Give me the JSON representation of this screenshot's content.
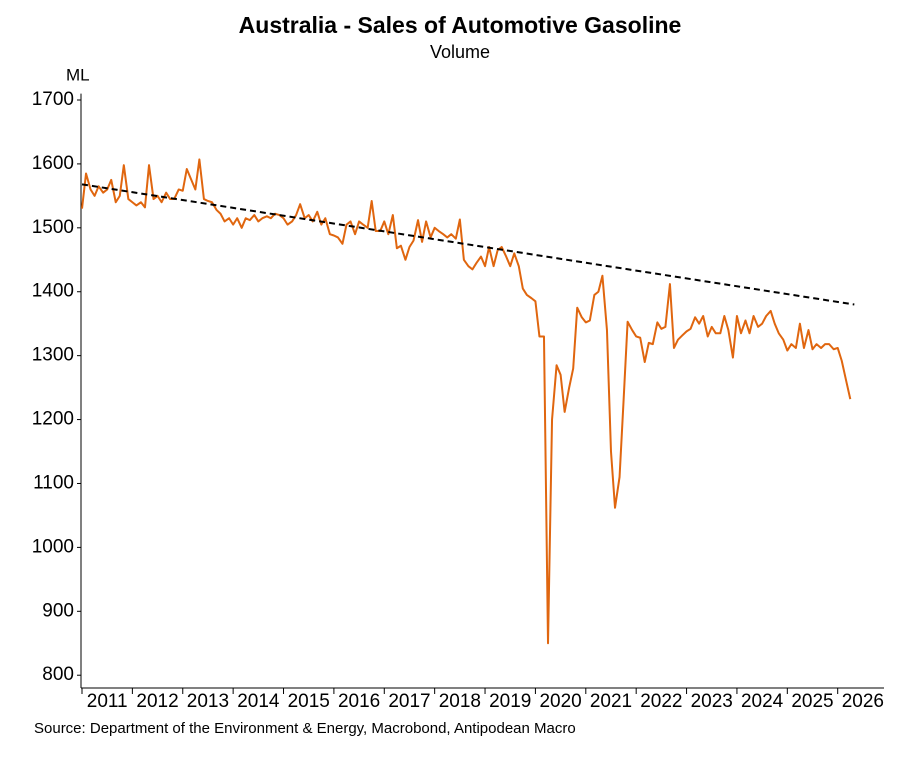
{
  "chart_data": {
    "type": "line",
    "title": "Australia - Sales of Automotive Gasoline",
    "subtitle": "Volume",
    "y_label": "ML",
    "source": "Source: Department of the Environment & Energy, Macrobond, Antipodean Macro",
    "xlim": [
      2011,
      2026.8
    ],
    "xticks": [
      2011,
      2012,
      2013,
      2014,
      2015,
      2016,
      2017,
      2018,
      2019,
      2020,
      2021,
      2022,
      2023,
      2024,
      2025,
      2026
    ],
    "ylim": [
      780,
      1710
    ],
    "yticks": [
      800,
      900,
      1000,
      1100,
      1200,
      1300,
      1400,
      1500,
      1600,
      1700
    ],
    "grid": false,
    "series": [
      {
        "color": "#e0660f",
        "style": "solid",
        "x": [
          2011,
          2011.08,
          2011.17,
          2011.25,
          2011.33,
          2011.42,
          2011.5,
          2011.58,
          2011.67,
          2011.75,
          2011.83,
          2011.92,
          2012,
          2012.08,
          2012.17,
          2012.25,
          2012.33,
          2012.42,
          2012.5,
          2012.58,
          2012.67,
          2012.75,
          2012.83,
          2012.92,
          2013,
          2013.08,
          2013.17,
          2013.25,
          2013.33,
          2013.42,
          2013.5,
          2013.58,
          2013.67,
          2013.75,
          2013.83,
          2013.92,
          2014,
          2014.08,
          2014.17,
          2014.25,
          2014.33,
          2014.42,
          2014.5,
          2014.58,
          2014.67,
          2014.75,
          2014.83,
          2014.92,
          2015,
          2015.08,
          2015.17,
          2015.25,
          2015.33,
          2015.42,
          2015.5,
          2015.58,
          2015.67,
          2015.75,
          2015.83,
          2015.92,
          2016,
          2016.08,
          2016.17,
          2016.25,
          2016.33,
          2016.42,
          2016.5,
          2016.58,
          2016.67,
          2016.75,
          2016.83,
          2016.92,
          2017,
          2017.08,
          2017.17,
          2017.25,
          2017.33,
          2017.42,
          2017.5,
          2017.58,
          2017.67,
          2017.75,
          2017.83,
          2017.92,
          2018,
          2018.08,
          2018.17,
          2018.25,
          2018.33,
          2018.42,
          2018.5,
          2018.58,
          2018.67,
          2018.75,
          2018.83,
          2018.92,
          2019,
          2019.08,
          2019.17,
          2019.25,
          2019.33,
          2019.42,
          2019.5,
          2019.58,
          2019.67,
          2019.75,
          2019.83,
          2019.92,
          2020,
          2020.08,
          2020.17,
          2020.25,
          2020.33,
          2020.42,
          2020.5,
          2020.58,
          2020.67,
          2020.75,
          2020.83,
          2020.92,
          2021,
          2021.08,
          2021.17,
          2021.25,
          2021.33,
          2021.42,
          2021.5,
          2021.58,
          2021.67,
          2021.75,
          2021.83,
          2021.92,
          2022,
          2022.08,
          2022.17,
          2022.25,
          2022.33,
          2022.42,
          2022.5,
          2022.58,
          2022.67,
          2022.75,
          2022.83,
          2022.92,
          2023,
          2023.08,
          2023.17,
          2023.25,
          2023.33,
          2023.42,
          2023.5,
          2023.58,
          2023.67,
          2023.75,
          2023.83,
          2023.92,
          2024,
          2024.08,
          2024.17,
          2024.25,
          2024.33,
          2024.42,
          2024.5,
          2024.58,
          2024.67,
          2024.75,
          2024.83,
          2024.92,
          2025,
          2025.08,
          2025.17,
          2025.25,
          2025.33,
          2025.42,
          2025.5,
          2025.58,
          2025.67,
          2025.75,
          2025.83,
          2025.92,
          2026,
          2026.08,
          2026.17,
          2026.25
        ],
        "values": [
          1530,
          1585,
          1560,
          1550,
          1565,
          1555,
          1560,
          1575,
          1540,
          1550,
          1598,
          1545,
          1540,
          1535,
          1540,
          1532,
          1598,
          1545,
          1550,
          1540,
          1555,
          1545,
          1545,
          1560,
          1558,
          1592,
          1575,
          1560,
          1607,
          1545,
          1542,
          1540,
          1528,
          1522,
          1510,
          1515,
          1505,
          1515,
          1500,
          1515,
          1512,
          1520,
          1510,
          1515,
          1518,
          1515,
          1522,
          1520,
          1515,
          1505,
          1510,
          1520,
          1537,
          1515,
          1520,
          1510,
          1525,
          1505,
          1515,
          1490,
          1488,
          1485,
          1475,
          1505,
          1510,
          1490,
          1510,
          1505,
          1500,
          1542,
          1495,
          1495,
          1510,
          1490,
          1520,
          1468,
          1472,
          1450,
          1470,
          1480,
          1512,
          1478,
          1510,
          1485,
          1500,
          1495,
          1490,
          1485,
          1490,
          1483,
          1513,
          1450,
          1440,
          1435,
          1445,
          1455,
          1440,
          1470,
          1440,
          1465,
          1470,
          1455,
          1440,
          1460,
          1440,
          1405,
          1395,
          1390,
          1385,
          1330,
          1330,
          850,
          1200,
          1285,
          1270,
          1212,
          1250,
          1280,
          1375,
          1360,
          1352,
          1355,
          1395,
          1400,
          1425,
          1340,
          1150,
          1062,
          1110,
          1230,
          1353,
          1340,
          1330,
          1328,
          1290,
          1320,
          1318,
          1352,
          1342,
          1345,
          1412,
          1312,
          1325,
          1332,
          1338,
          1342,
          1360,
          1350,
          1362,
          1330,
          1345,
          1335,
          1335,
          1362,
          1340,
          1297,
          1362,
          1335,
          1355,
          1335,
          1362,
          1345,
          1350,
          1362,
          1370,
          1350,
          1335,
          1325,
          1308,
          1318,
          1312,
          1350,
          1312,
          1340,
          1310,
          1318,
          1312,
          1318,
          1318,
          1310,
          1312,
          1292,
          1260,
          1232
        ]
      },
      {
        "color": "#000000",
        "style": "dashed",
        "x": [
          2011,
          2026.33
        ],
        "values": [
          1568,
          1380
        ]
      }
    ]
  }
}
